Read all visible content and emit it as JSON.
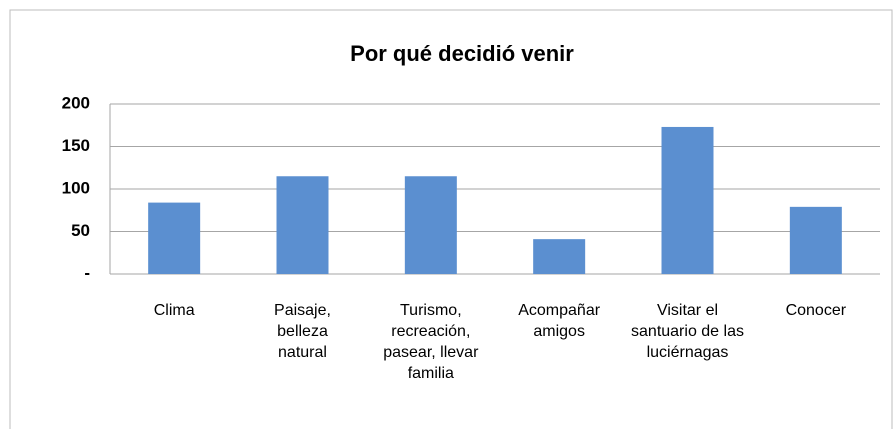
{
  "chart_data": {
    "type": "bar",
    "title": "Por qué decidió venir",
    "categories": [
      "Clima",
      "Paisaje, belleza natural",
      "Turismo, recreación, pasear, llevar familia",
      "Acompañar amigos",
      "Visitar el santuario de las luciérnagas",
      "Conocer"
    ],
    "values": [
      84,
      115,
      115,
      41,
      173,
      79
    ],
    "color": "#5b8fd0",
    "ylim": [
      0,
      200
    ],
    "yticks": [
      {
        "value": 0,
        "label": "-"
      },
      50,
      100,
      150,
      200
    ],
    "grid": true
  }
}
